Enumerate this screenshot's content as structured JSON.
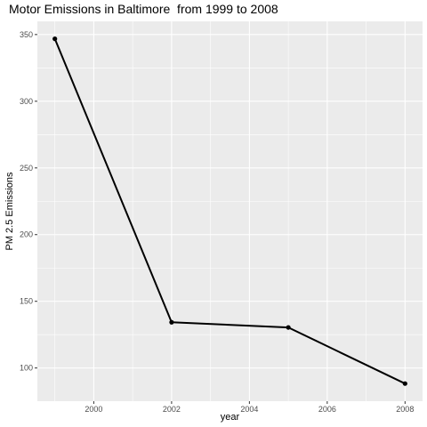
{
  "chart_data": {
    "type": "line",
    "title": "Motor Emissions in Baltimore  from 1999 to 2008",
    "xlabel": "year",
    "ylabel": "PM 2.5 Emissions",
    "x": [
      1999,
      2002,
      2005,
      2008
    ],
    "series": [
      {
        "values": [
          346.8,
          134.3,
          130.4,
          88.3
        ]
      }
    ],
    "xlim": [
      1998.55,
      2008.45
    ],
    "ylim": [
      75.1,
      359.9
    ],
    "x_ticks": [
      "2000",
      "2002",
      "2004",
      "2006",
      "2008"
    ],
    "y_ticks": [
      "100",
      "150",
      "200",
      "250",
      "300",
      "350"
    ],
    "grid": true,
    "colors": {
      "panel": "#ebebeb",
      "grid": "#ffffff",
      "line": "#000000"
    }
  }
}
